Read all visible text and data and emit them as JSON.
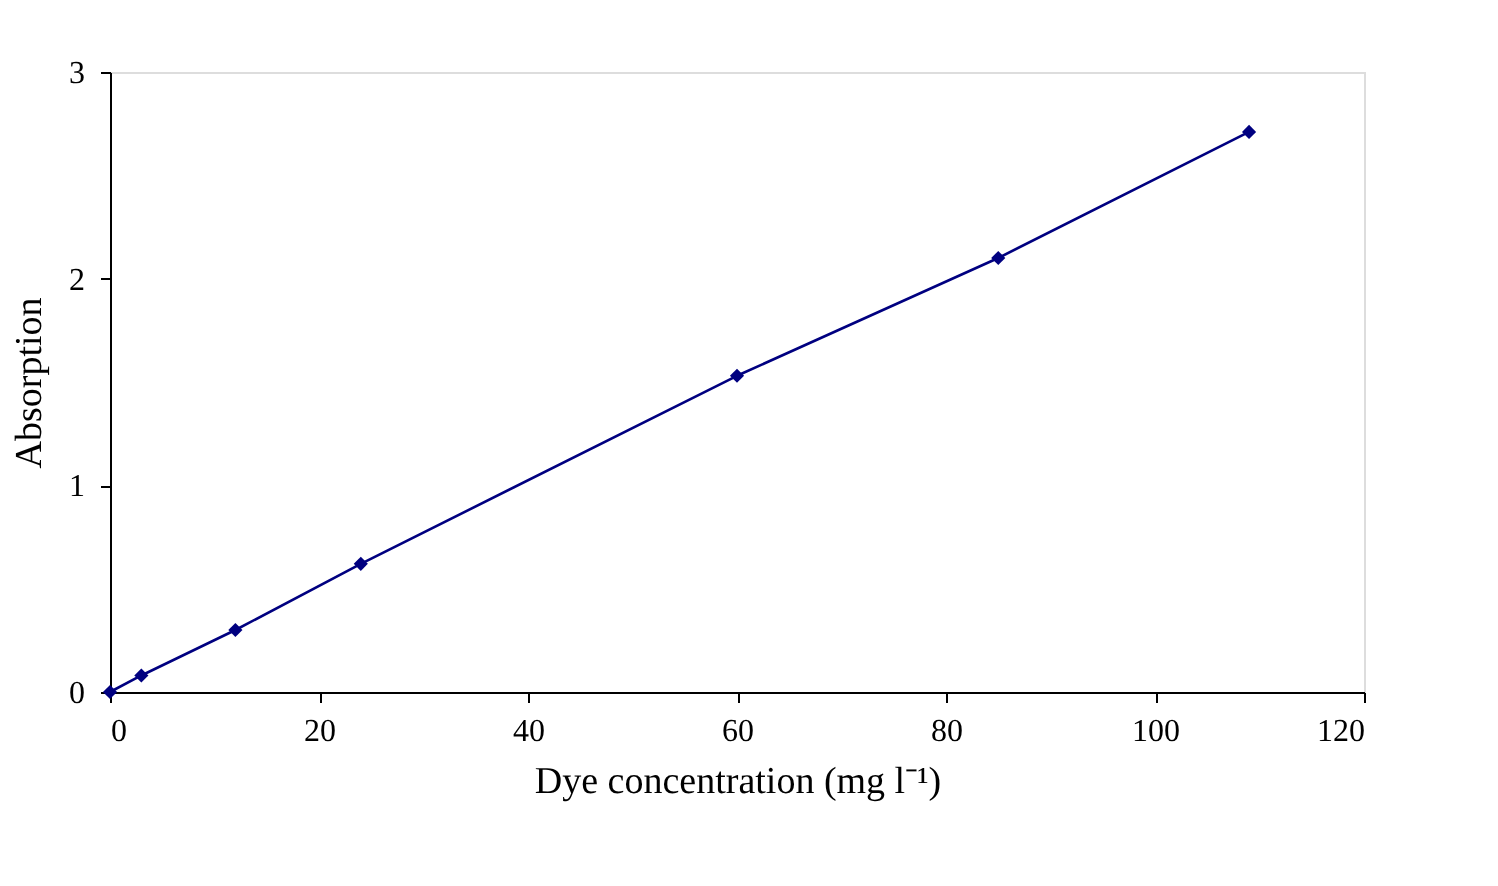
{
  "chart_data": {
    "type": "line",
    "xlabel": "Dye concentration (mg l⁻¹)",
    "ylabel": "Absorption",
    "x": [
      0,
      3,
      12,
      24,
      60,
      85,
      109
    ],
    "series": [
      {
        "color": "#000080",
        "values": [
          0,
          0.08,
          0.3,
          0.62,
          1.53,
          2.1,
          2.71
        ]
      }
    ],
    "xlim": [
      0,
      120
    ],
    "xticks": [
      0,
      20,
      40,
      60,
      80,
      100,
      120
    ],
    "ylim": [
      0,
      3
    ],
    "yticks": [
      0,
      1,
      2,
      3
    ],
    "grid": false,
    "marker": "diamond",
    "line_style": "solid"
  }
}
